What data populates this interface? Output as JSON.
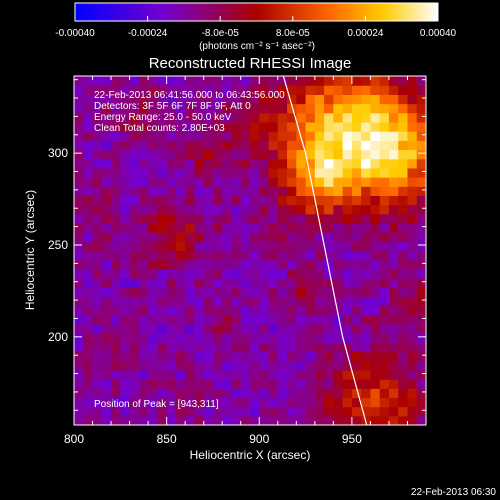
{
  "chart_data": {
    "type": "heatmap",
    "title": "Reconstructed RHESSI Image",
    "xlabel": "Heliocentric X (arcsec)",
    "ylabel": "Heliocentric Y (arcsec)",
    "xlim": [
      800,
      990
    ],
    "ylim": [
      152,
      342
    ],
    "x_ticks": [
      800,
      850,
      900,
      950
    ],
    "x_tick_labels": [
      "800",
      "850",
      "900",
      "950"
    ],
    "y_ticks": [
      200,
      250,
      300
    ],
    "y_tick_labels": [
      "200",
      "250",
      "300"
    ],
    "colorbar": {
      "range": [
        -0.0004,
        0.0004
      ],
      "ticks": [
        -0.0004,
        -0.00024,
        -8e-05,
        8e-05,
        0.00024,
        0.0004
      ],
      "tick_labels": [
        "-0.00040",
        "-0.00024",
        "-8.0e-05",
        "8.0e-05",
        "0.00024",
        "0.00040"
      ],
      "units_label": "(photons cm⁻² s⁻¹ asec⁻²)",
      "colors": [
        "#0000ff",
        "#7700cc",
        "#aa0000",
        "#ff6600",
        "#ffcc00",
        "#ffffff"
      ]
    },
    "annotations": [
      "22-Feb-2013 06:41:56.000 to 06:43:56.000",
      "Detectors: 3F 5F 6F 7F 8F 9F, Att 0",
      "Energy Range: 25.0 - 50.0 keV",
      "Clean    Total counts: 2.80E+03"
    ],
    "peak_label": "Position of Peak = [943,311]",
    "peak": [
      943,
      311
    ],
    "limb_curve": [
      [
        913,
        342
      ],
      [
        925,
        300
      ],
      [
        935,
        250
      ],
      [
        945,
        200
      ],
      [
        958,
        152
      ]
    ],
    "sources": [
      {
        "x": 945,
        "y": 311,
        "sigma": 25,
        "amp": 0.00042
      },
      {
        "x": 975,
        "y": 300,
        "sigma": 20,
        "amp": 0.00028
      },
      {
        "x": 930,
        "y": 285,
        "sigma": 12,
        "amp": 0.0002
      },
      {
        "x": 962,
        "y": 165,
        "sigma": 18,
        "amp": 0.00024
      },
      {
        "x": 855,
        "y": 255,
        "sigma": 12,
        "amp": 0.00015
      },
      {
        "x": 872,
        "y": 298,
        "sigma": 9,
        "amp": 0.00012
      },
      {
        "x": 835,
        "y": 325,
        "sigma": 9,
        "amp": 0.0001
      },
      {
        "x": 895,
        "y": 315,
        "sigma": 9,
        "amp": 0.0001
      },
      {
        "x": 882,
        "y": 205,
        "sigma": 8,
        "amp": 8e-05
      },
      {
        "x": 810,
        "y": 270,
        "sigma": 8,
        "amp": 9e-05
      },
      {
        "x": 928,
        "y": 225,
        "sigma": 9,
        "amp": 0.0001
      },
      {
        "x": 985,
        "y": 220,
        "sigma": 10,
        "amp": 0.00011
      },
      {
        "x": 905,
        "y": 255,
        "sigma": 6,
        "amp": 7e-05
      },
      {
        "x": 818,
        "y": 185,
        "sigma": 7,
        "amp": 7e-05
      },
      {
        "x": 862,
        "y": 165,
        "sigma": 7,
        "amp": 6e-05
      }
    ],
    "background_level": -0.00016
  },
  "footer": {
    "timestamp": "22-Feb-2013 06:30"
  }
}
